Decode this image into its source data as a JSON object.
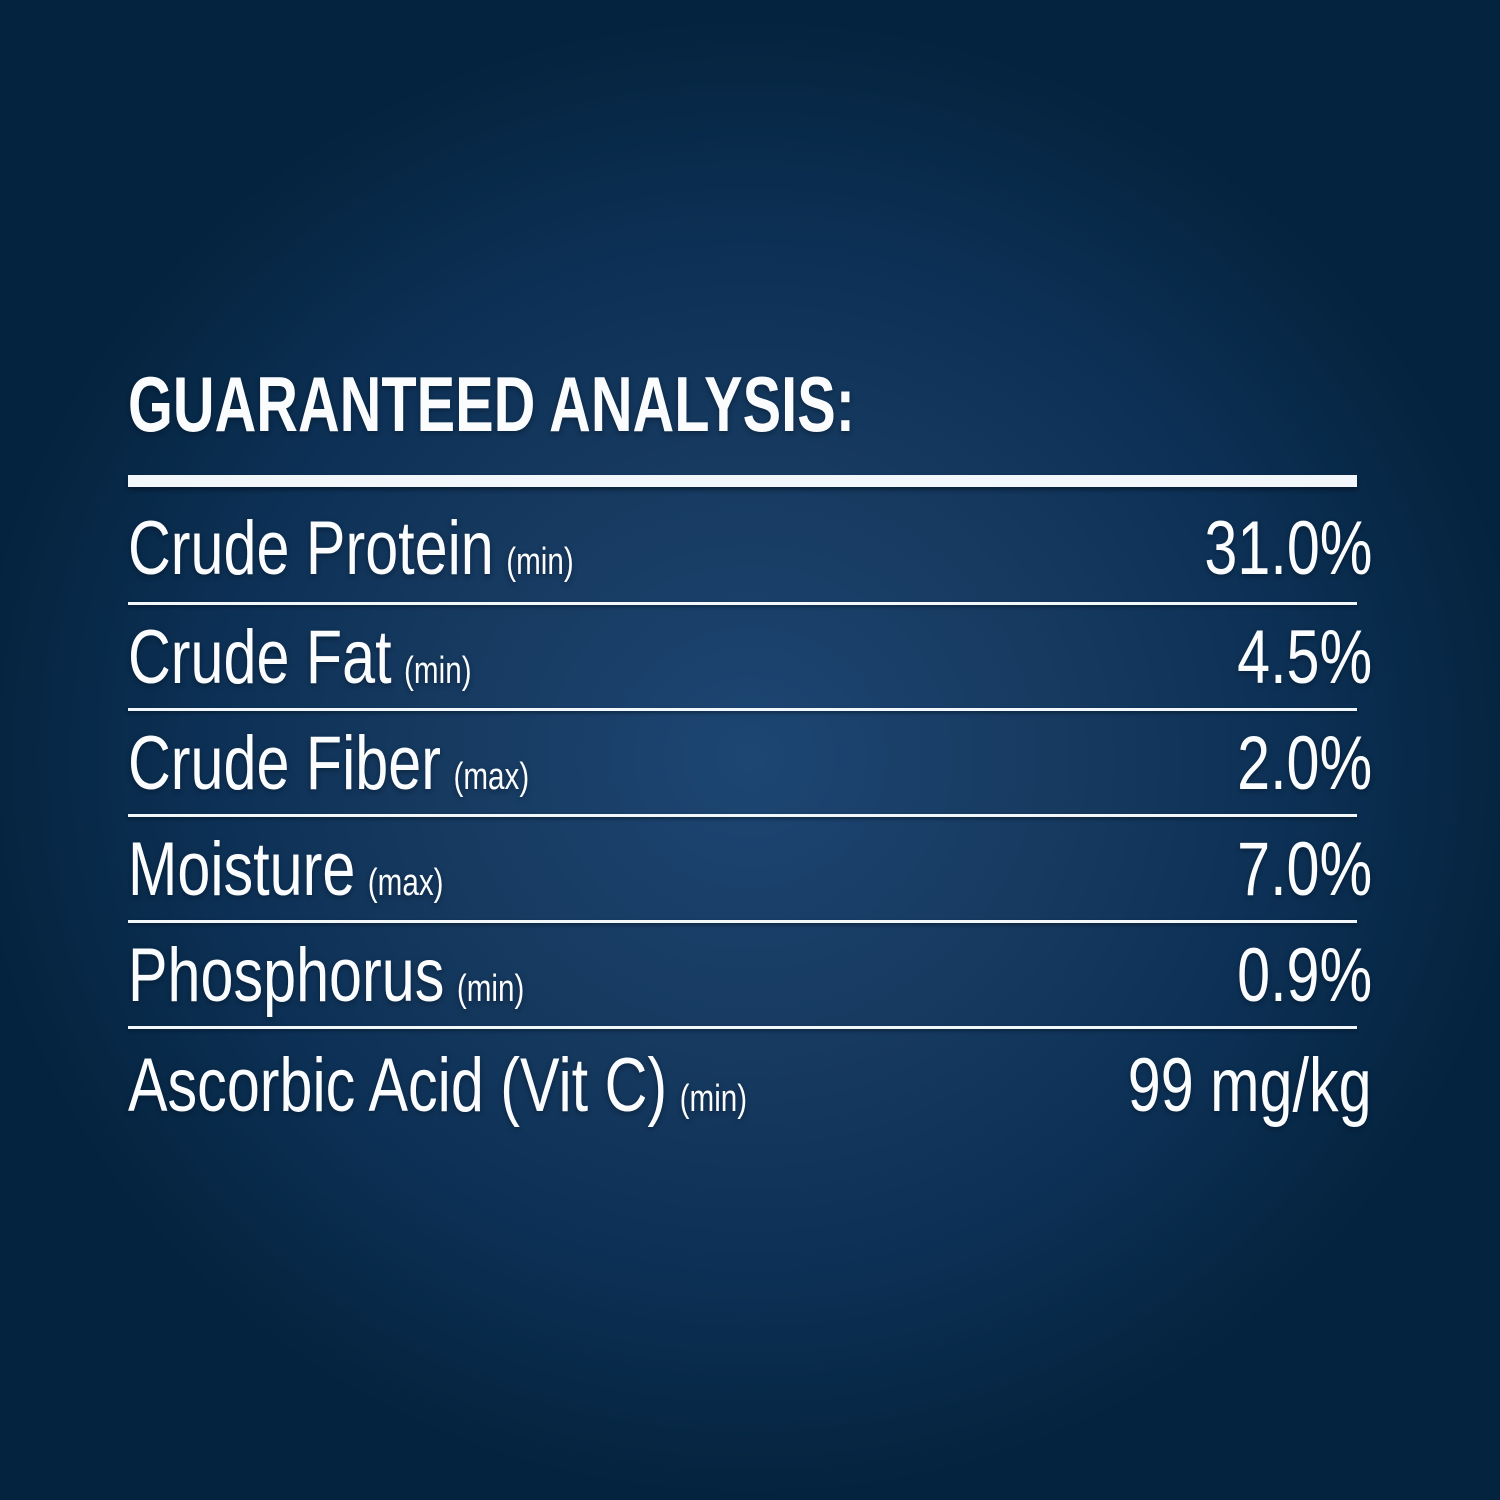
{
  "panel": {
    "title": "GUARANTEED ANALYSIS:"
  },
  "table": {
    "rows": [
      {
        "label": "Crude Protein",
        "qualifier": "(min)",
        "value": "31.0%"
      },
      {
        "label": "Crude Fat",
        "qualifier": "(min)",
        "value": "4.5%"
      },
      {
        "label": "Crude Fiber",
        "qualifier": "(max)",
        "value": "2.0%"
      },
      {
        "label": "Moisture",
        "qualifier": "(max)",
        "value": "7.0%"
      },
      {
        "label": "Phosphorus",
        "qualifier": "(min)",
        "value": "0.9%"
      },
      {
        "label": "Ascorbic Acid (Vit C)",
        "qualifier": "(min)",
        "value": "99 mg/kg"
      }
    ]
  },
  "colors": {
    "background_center": "#1d4673",
    "background_mid": "#0d3156",
    "background_corner": "#04233e",
    "text": "#fafcfe",
    "rule": "#f2f7fc"
  }
}
